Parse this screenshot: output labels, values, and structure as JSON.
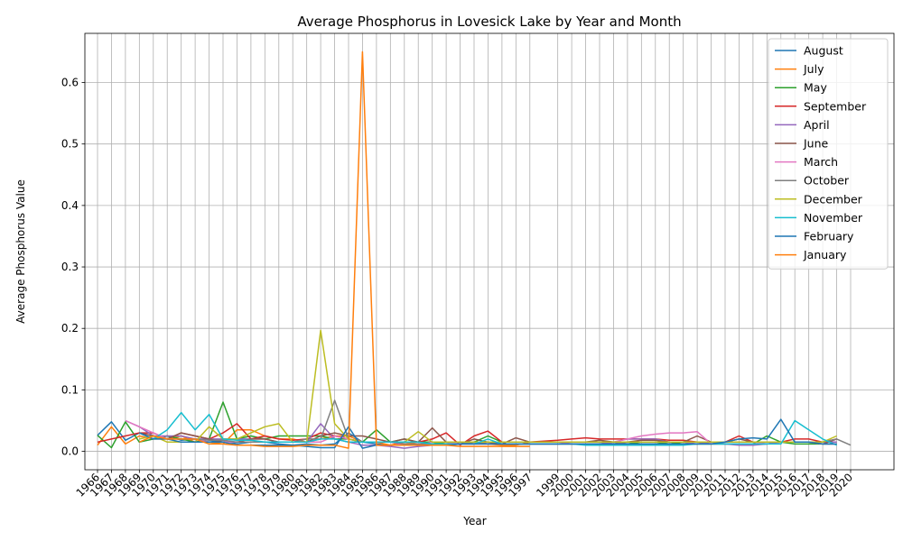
{
  "chart_data": {
    "type": "line",
    "title": "Average Phosphorus in Lovesick Lake by Year and Month",
    "xlabel": "Year",
    "ylabel": "Average Phosphorus Value",
    "ylim": [
      -0.03,
      0.68
    ],
    "yticks": [
      "0.0",
      "0.1",
      "0.2",
      "0.3",
      "0.4",
      "0.5",
      "0.6"
    ],
    "grid": true,
    "legend_position": "top-right",
    "x": [
      "1966",
      "1967",
      "1968",
      "1969",
      "1970",
      "1971",
      "1972",
      "1973",
      "1974",
      "1975",
      "1976",
      "1977",
      "1978",
      "1979",
      "1980",
      "1981",
      "1982",
      "1983",
      "1984",
      "1985",
      "1986",
      "1987",
      "1988",
      "1989",
      "1990",
      "1991",
      "1992",
      "1993",
      "1994",
      "1995",
      "1996",
      "1997",
      "1999",
      "2000",
      "2001",
      "2002",
      "2003",
      "2004",
      "2005",
      "2006",
      "2007",
      "2008",
      "2009",
      "2010",
      "2011",
      "2012",
      "2013",
      "2014",
      "2015",
      "2016",
      "2017",
      "2018",
      "2019",
      "2020"
    ],
    "series": [
      {
        "name": "August",
        "color": "#1f77b4",
        "values": [
          0.026,
          0.048,
          0.018,
          0.03,
          0.02,
          0.025,
          0.018,
          0.02,
          0.015,
          0.018,
          0.012,
          0.015,
          0.015,
          0.012,
          0.01,
          0.012,
          0.01,
          0.012,
          0.03,
          0.015,
          0.012,
          0.01,
          0.012,
          0.01,
          0.01,
          0.01,
          0.012,
          0.015,
          0.012,
          0.012,
          0.012,
          0.012,
          0.012,
          0.012,
          0.012,
          0.012,
          0.015,
          0.012,
          0.012,
          0.012,
          0.012,
          0.012,
          0.012,
          0.012,
          0.012,
          0.012,
          0.012,
          0.012,
          0.015,
          0.015,
          0.015,
          0.012,
          0.012,
          null
        ]
      },
      {
        "name": "July",
        "color": "#ff7f0e",
        "values": [
          0.01,
          0.04,
          0.012,
          0.025,
          0.02,
          0.02,
          0.025,
          0.015,
          0.015,
          0.012,
          0.035,
          0.035,
          0.025,
          0.02,
          0.02,
          0.015,
          0.02,
          0.025,
          0.025,
          0.015,
          0.015,
          0.01,
          0.015,
          0.012,
          0.012,
          0.015,
          0.015,
          0.012,
          0.012,
          0.01,
          0.01,
          0.015,
          0.015,
          0.015,
          0.015,
          0.015,
          0.015,
          0.015,
          0.015,
          0.015,
          0.015,
          0.015,
          0.015,
          0.012,
          0.015,
          0.015,
          0.015,
          0.015,
          0.015,
          0.015,
          0.015,
          0.015,
          0.015,
          null
        ]
      },
      {
        "name": "May",
        "color": "#2ca02c",
        "values": [
          0.026,
          0.006,
          0.048,
          0.015,
          0.02,
          0.025,
          0.02,
          0.015,
          0.02,
          0.08,
          0.02,
          0.025,
          0.02,
          0.025,
          0.025,
          0.025,
          0.025,
          0.02,
          0.02,
          0.015,
          0.035,
          0.015,
          0.02,
          0.015,
          0.015,
          0.012,
          0.015,
          0.015,
          0.025,
          0.015,
          0.015,
          0.015,
          0.015,
          0.015,
          0.015,
          0.015,
          0.015,
          0.015,
          0.012,
          0.012,
          0.015,
          0.012,
          0.012,
          0.012,
          0.012,
          0.012,
          0.012,
          0.025,
          0.015,
          0.012,
          0.012,
          0.012,
          0.012,
          null
        ]
      },
      {
        "name": "September",
        "color": "#d62728",
        "values": [
          0.015,
          0.02,
          0.025,
          0.03,
          0.03,
          0.02,
          0.03,
          0.025,
          0.02,
          0.03,
          0.045,
          0.02,
          0.025,
          0.02,
          0.018,
          0.02,
          0.03,
          0.025,
          0.02,
          0.015,
          0.015,
          0.015,
          0.015,
          0.015,
          0.02,
          0.03,
          0.01,
          0.025,
          0.033,
          0.015,
          0.015,
          0.015,
          0.018,
          0.02,
          0.022,
          0.02,
          0.02,
          0.02,
          0.02,
          0.02,
          0.018,
          0.018,
          0.015,
          0.015,
          0.015,
          0.025,
          0.015,
          0.015,
          0.015,
          0.02,
          0.02,
          0.015,
          0.02,
          null
        ]
      },
      {
        "name": "April",
        "color": "#9467bd",
        "values": [
          null,
          null,
          0.05,
          0.04,
          0.025,
          0.025,
          0.025,
          0.02,
          0.02,
          0.02,
          0.02,
          0.02,
          0.02,
          0.015,
          0.015,
          0.015,
          0.045,
          0.02,
          0.015,
          0.01,
          0.01,
          0.008,
          0.005,
          0.008,
          0.01,
          0.01,
          0.012,
          0.012,
          0.015,
          0.012,
          0.012,
          0.012,
          0.012,
          0.012,
          0.012,
          0.012,
          0.015,
          0.02,
          0.02,
          0.02,
          0.015,
          0.015,
          0.012,
          0.015,
          0.012,
          0.01,
          0.01,
          0.012,
          0.015,
          0.015,
          0.015,
          0.015,
          0.015,
          null
        ]
      },
      {
        "name": "June",
        "color": "#8c564b",
        "values": [
          null,
          null,
          null,
          0.03,
          0.025,
          0.02,
          0.03,
          0.025,
          0.02,
          0.015,
          0.015,
          0.02,
          0.02,
          0.015,
          0.015,
          0.015,
          0.025,
          0.03,
          0.025,
          0.025,
          0.02,
          0.015,
          0.02,
          0.015,
          0.038,
          0.015,
          0.012,
          0.02,
          0.015,
          0.012,
          0.022,
          0.015,
          0.015,
          0.015,
          0.015,
          0.018,
          0.015,
          0.015,
          0.018,
          0.018,
          0.015,
          0.015,
          0.025,
          0.015,
          0.015,
          0.02,
          0.015,
          0.015,
          0.015,
          0.015,
          0.015,
          0.012,
          0.02,
          null
        ]
      },
      {
        "name": "March",
        "color": "#e377c2",
        "values": [
          null,
          null,
          0.05,
          0.04,
          0.03,
          0.02,
          0.02,
          0.02,
          0.015,
          0.015,
          0.015,
          0.015,
          0.015,
          0.015,
          0.015,
          0.015,
          0.015,
          0.025,
          0.02,
          0.015,
          0.015,
          0.015,
          0.01,
          0.01,
          0.015,
          0.015,
          0.012,
          0.012,
          0.012,
          0.012,
          0.012,
          0.012,
          0.012,
          0.015,
          0.015,
          0.015,
          0.015,
          0.02,
          0.025,
          0.028,
          0.03,
          0.03,
          0.032,
          0.012,
          0.012,
          0.012,
          0.012,
          0.015,
          0.015,
          0.015,
          0.015,
          0.012,
          0.012,
          null
        ]
      },
      {
        "name": "October",
        "color": "#7f7f7f",
        "values": [
          null,
          null,
          null,
          null,
          0.025,
          0.02,
          0.02,
          0.02,
          0.018,
          0.018,
          0.015,
          0.015,
          0.015,
          0.015,
          0.015,
          0.02,
          0.02,
          0.083,
          0.02,
          0.015,
          0.015,
          0.015,
          0.012,
          0.012,
          0.012,
          0.012,
          0.012,
          0.015,
          0.012,
          0.012,
          0.012,
          0.012,
          0.012,
          0.012,
          0.012,
          0.012,
          0.012,
          0.015,
          0.015,
          0.015,
          0.015,
          0.015,
          0.015,
          0.015,
          0.015,
          0.015,
          0.015,
          0.015,
          0.015,
          0.015,
          0.015,
          0.015,
          0.02,
          0.01
        ]
      },
      {
        "name": "December",
        "color": "#bcbd22",
        "values": [
          null,
          null,
          null,
          0.02,
          0.025,
          0.015,
          0.015,
          0.015,
          0.04,
          0.02,
          0.02,
          0.03,
          0.04,
          0.045,
          0.015,
          0.015,
          0.197,
          0.045,
          0.02,
          0.015,
          0.015,
          0.015,
          0.015,
          0.032,
          0.015,
          0.015,
          0.015,
          0.015,
          0.015,
          0.015,
          0.015,
          0.015,
          0.015,
          0.015,
          0.015,
          0.015,
          0.015,
          0.015,
          0.015,
          0.015,
          0.015,
          0.015,
          0.015,
          0.015,
          0.015,
          0.015,
          0.015,
          0.015,
          0.015,
          0.015,
          0.015,
          0.015,
          0.025,
          null
        ]
      },
      {
        "name": "November",
        "color": "#17becf",
        "values": [
          null,
          null,
          null,
          null,
          0.02,
          0.035,
          0.063,
          0.035,
          0.06,
          0.02,
          0.018,
          0.018,
          0.015,
          0.015,
          0.015,
          0.015,
          0.02,
          0.02,
          0.015,
          0.015,
          0.015,
          0.015,
          0.015,
          0.015,
          0.012,
          0.012,
          0.012,
          0.012,
          0.02,
          0.012,
          0.012,
          0.012,
          0.012,
          0.012,
          0.01,
          0.01,
          0.01,
          0.01,
          0.01,
          0.01,
          0.01,
          0.01,
          0.012,
          0.012,
          0.012,
          0.012,
          0.012,
          0.012,
          0.012,
          0.05,
          0.035,
          0.02,
          0.01,
          null
        ]
      },
      {
        "name": "February",
        "color": "#1f77b4",
        "values": [
          null,
          null,
          null,
          0.03,
          0.02,
          0.02,
          0.015,
          0.015,
          0.015,
          0.015,
          0.01,
          0.01,
          0.01,
          0.01,
          0.01,
          0.008,
          0.006,
          0.006,
          0.04,
          0.005,
          0.01,
          0.01,
          0.01,
          0.01,
          0.01,
          0.01,
          0.012,
          0.012,
          0.012,
          0.012,
          0.012,
          0.012,
          0.012,
          0.012,
          0.012,
          0.012,
          0.012,
          0.012,
          0.012,
          0.012,
          0.012,
          0.012,
          0.012,
          0.012,
          0.015,
          0.02,
          0.022,
          0.02,
          0.052,
          0.015,
          0.015,
          0.012,
          0.012,
          null
        ]
      },
      {
        "name": "January",
        "color": "#ff7f0e",
        "values": [
          null,
          null,
          null,
          0.015,
          0.025,
          0.02,
          0.02,
          0.02,
          0.012,
          0.012,
          0.01,
          0.01,
          0.008,
          0.008,
          0.008,
          0.01,
          0.01,
          0.01,
          0.005,
          0.65,
          0.01,
          0.01,
          0.01,
          0.01,
          0.01,
          0.01,
          0.008,
          0.008,
          0.008,
          0.008,
          0.008,
          0.008,
          null,
          null,
          null,
          null,
          null,
          null,
          null,
          null,
          null,
          null,
          null,
          null,
          null,
          null,
          null,
          null,
          null,
          null,
          null,
          null,
          null,
          null
        ]
      }
    ]
  }
}
